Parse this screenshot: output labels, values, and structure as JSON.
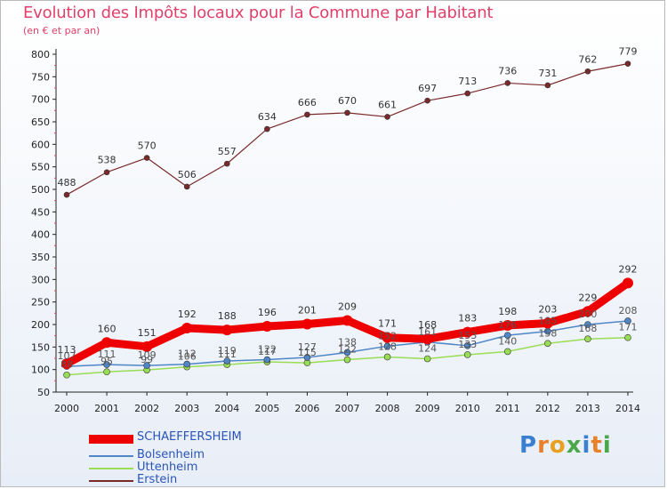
{
  "title": "Evolution des Impôts locaux pour la Commune par Habitant",
  "subtitle": "(en € et par an)",
  "brand": {
    "letters": [
      {
        "ch": "P",
        "color": "#3a7fd0"
      },
      {
        "ch": "r",
        "color": "#e8802a"
      },
      {
        "ch": "o",
        "color": "#e8a020"
      },
      {
        "ch": "x",
        "color": "#4aa84a"
      },
      {
        "ch": "i",
        "color": "#3a7fd0"
      },
      {
        "ch": "t",
        "color": "#e8802a"
      },
      {
        "ch": "i",
        "color": "#4aa84a"
      }
    ]
  },
  "chart_data": {
    "type": "line",
    "title": "Evolution des Impôts locaux pour la Commune par Habitant",
    "subtitle": "(en € et par an)",
    "x": [
      "2000",
      "2001",
      "2002",
      "2003",
      "2004",
      "2005",
      "2006",
      "2007",
      "2008",
      "2009",
      "2010",
      "2011",
      "2012",
      "2013",
      "2014"
    ],
    "yticks": [
      50,
      100,
      150,
      200,
      250,
      300,
      350,
      400,
      450,
      500,
      550,
      600,
      650,
      700,
      750,
      800
    ],
    "ylim": [
      50,
      800
    ],
    "grid": false,
    "legend": "bottom-left",
    "series": [
      {
        "name": "SCHAEFFERSHEIM",
        "color": "#ee0000",
        "values": [
          113,
          160,
          151,
          192,
          188,
          196,
          201,
          209,
          171,
          168,
          183,
          198,
          203,
          229,
          292
        ],
        "labels": [
          "113",
          "160",
          "151",
          "192",
          "188",
          "196",
          "201",
          "209",
          "171",
          "168",
          "183",
          "198",
          "203",
          "229",
          "292"
        ]
      },
      {
        "name": "Bolsenheim",
        "color": "#4f86c6",
        "values": [
          107,
          111,
          109,
          112,
          119,
          122,
          127,
          138,
          152,
          161,
          153,
          176,
          185,
          200,
          208
        ],
        "labels": [
          "107",
          "111",
          "109",
          "112",
          "119",
          "122",
          "127",
          "138",
          "152",
          "161",
          "153",
          "176",
          "185",
          "200",
          "208"
        ]
      },
      {
        "name": "Uttenheim",
        "color": "#99dd55",
        "values": [
          88,
          95,
          99,
          106,
          111,
          117,
          115,
          122,
          128,
          124,
          133,
          140,
          158,
          168,
          171
        ],
        "labels": [
          "88",
          "95",
          "99",
          "106",
          "111",
          "117",
          "115",
          "122",
          "128",
          "124",
          "133",
          "140",
          "158",
          "168",
          "171"
        ]
      },
      {
        "name": "Erstein",
        "color": "#7a2a2a",
        "values": [
          488,
          538,
          570,
          506,
          557,
          634,
          666,
          670,
          661,
          697,
          713,
          736,
          731,
          762,
          779
        ],
        "labels": [
          "488",
          "538",
          "570",
          "506",
          "557",
          "634",
          "666",
          "670",
          "661",
          "697",
          "713",
          "736",
          "731",
          "762",
          "779"
        ]
      }
    ]
  }
}
